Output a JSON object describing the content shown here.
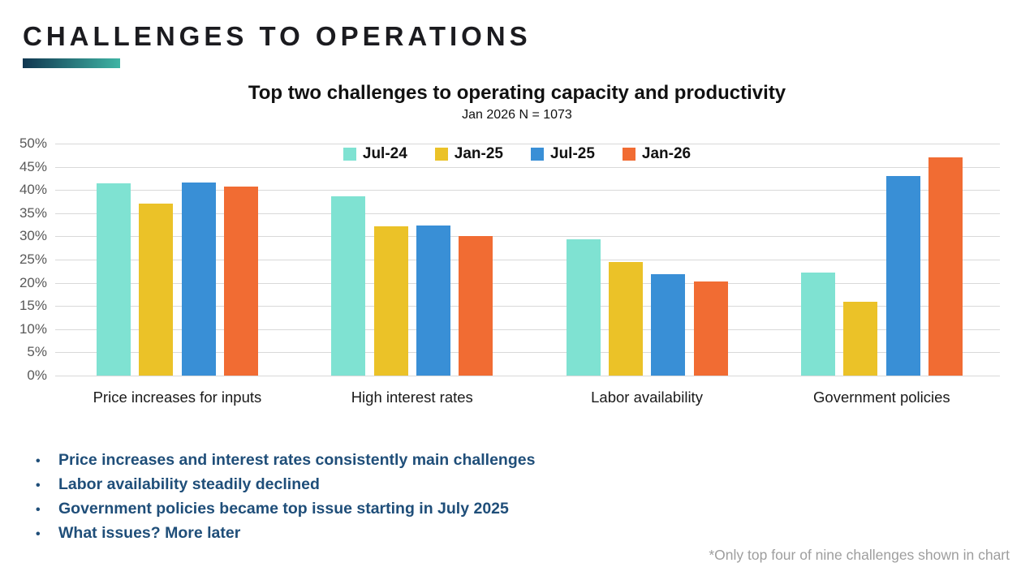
{
  "page": {
    "title": "CHALLENGES TO OPERATIONS"
  },
  "chart_data": {
    "type": "bar",
    "title": "Top two challenges to operating capacity and productivity",
    "subtitle": "Jan 2026 N = 1073",
    "categories": [
      "Price increases for inputs",
      "High interest rates",
      "Labor availability",
      "Government policies"
    ],
    "series": [
      {
        "name": "Jul-24",
        "color": "#7FE2D2",
        "values": [
          41.4,
          38.6,
          29.4,
          22.2
        ]
      },
      {
        "name": "Jan-25",
        "color": "#EBC228",
        "values": [
          37.0,
          32.2,
          24.4,
          15.9
        ]
      },
      {
        "name": "Jul-25",
        "color": "#398FD6",
        "values": [
          41.6,
          32.3,
          21.8,
          43.0
        ]
      },
      {
        "name": "Jan-26",
        "color": "#F16C33",
        "values": [
          40.7,
          30.0,
          20.2,
          47.0
        ]
      }
    ],
    "ylabel": "",
    "xlabel": "",
    "ylim": [
      0,
      50
    ],
    "ytick_step": 5,
    "ytick_labels": [
      "0%",
      "5%",
      "10%",
      "15%",
      "20%",
      "25%",
      "30%",
      "35%",
      "40%",
      "45%",
      "50%"
    ],
    "grid": true,
    "legend_position": "top-center"
  },
  "insights": {
    "bullets": [
      "Price increases and interest rates consistently main challenges",
      "Labor availability steadily declined",
      "Government policies became top issue starting in July 2025",
      "What issues? More later"
    ]
  },
  "footnote": "*Only top four of nine challenges shown in chart",
  "theme": {
    "accent_gradient_start": "#103650",
    "accent_gradient_end": "#3FB4A4",
    "bullet_text_color": "#1F4E79",
    "footnote_color": "#9E9E9E",
    "axis_label_color": "#595959",
    "gridline_color": "#D9D9D9"
  }
}
